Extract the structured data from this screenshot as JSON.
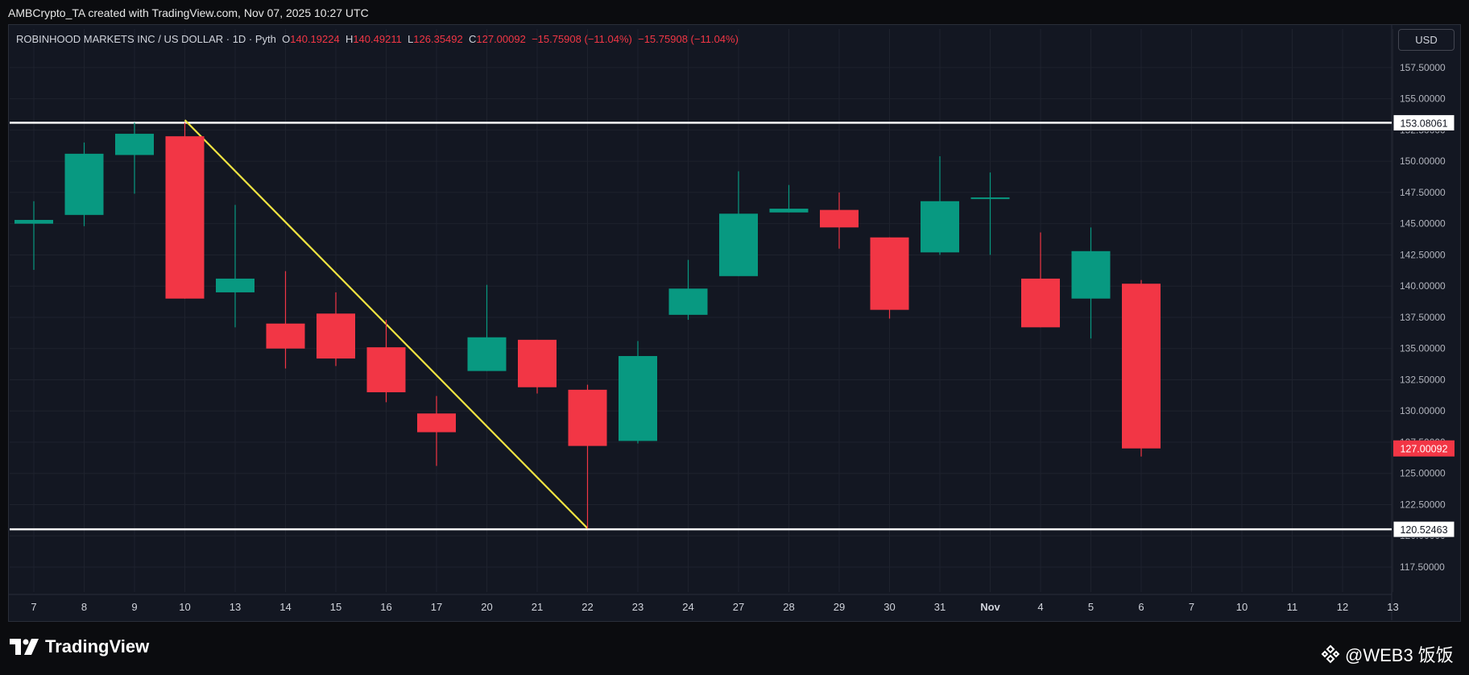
{
  "credit": "AMBCrypto_TA created with TradingView.com, Nov 07, 2025 10:27 UTC",
  "header": {
    "symbol": "ROBINHOOD MARKETS INC / US DOLLAR · 1D · Pyth",
    "o_label": "O",
    "o_value": "140.19224",
    "h_label": "H",
    "h_value": "140.49211",
    "l_label": "L",
    "l_value": "126.35492",
    "c_label": "C",
    "c_value": "127.00092",
    "change1": "−15.75908 (−11.04%)",
    "change2": "−15.75908 (−11.04%)"
  },
  "currency_button": "USD",
  "logo_text": "TradingView",
  "watermark_text": "@WEB3 饭饭",
  "colors": {
    "up": "#089981",
    "down": "#f23645",
    "trendline": "#f0e442",
    "level": "#ffffff",
    "grid": "#1e222d"
  },
  "chart_data": {
    "type": "candlestick",
    "ylim": [
      115.5,
      159.3
    ],
    "y_ticks": [
      "117.50000",
      "120.00000",
      "122.50000",
      "125.00000",
      "127.50000",
      "130.00000",
      "132.50000",
      "135.00000",
      "137.50000",
      "140.00000",
      "142.50000",
      "145.00000",
      "147.50000",
      "150.00000",
      "152.50000",
      "155.00000",
      "157.50000"
    ],
    "x_labels": [
      "7",
      "8",
      "9",
      "10",
      "13",
      "14",
      "15",
      "16",
      "17",
      "20",
      "21",
      "22",
      "23",
      "24",
      "27",
      "28",
      "29",
      "30",
      "31",
      "Nov",
      "4",
      "5",
      "6",
      "7",
      "10",
      "11",
      "12",
      "13"
    ],
    "candles": [
      {
        "date": "7",
        "open": 145.0,
        "high": 146.8,
        "low": 141.3,
        "close": 145.3
      },
      {
        "date": "8",
        "open": 145.7,
        "high": 151.5,
        "low": 144.8,
        "close": 150.6
      },
      {
        "date": "9",
        "open": 150.5,
        "high": 153.1,
        "low": 147.4,
        "close": 152.2
      },
      {
        "date": "10",
        "open": 152.0,
        "high": 153.1,
        "low": 139.0,
        "close": 139.0
      },
      {
        "date": "13",
        "open": 139.5,
        "high": 146.5,
        "low": 136.7,
        "close": 140.6
      },
      {
        "date": "14",
        "open": 137.0,
        "high": 141.2,
        "low": 133.4,
        "close": 135.0
      },
      {
        "date": "15",
        "open": 137.8,
        "high": 139.5,
        "low": 133.6,
        "close": 134.2
      },
      {
        "date": "16",
        "open": 135.1,
        "high": 137.3,
        "low": 130.7,
        "close": 131.5
      },
      {
        "date": "17",
        "open": 129.8,
        "high": 131.2,
        "low": 125.6,
        "close": 128.3
      },
      {
        "date": "20",
        "open": 133.2,
        "high": 140.1,
        "low": 133.2,
        "close": 135.9
      },
      {
        "date": "21",
        "open": 135.7,
        "high": 135.7,
        "low": 131.4,
        "close": 131.9
      },
      {
        "date": "22",
        "open": 131.7,
        "high": 132.1,
        "low": 120.6,
        "close": 127.2
      },
      {
        "date": "23",
        "open": 127.6,
        "high": 135.6,
        "low": 127.4,
        "close": 134.4
      },
      {
        "date": "24",
        "open": 137.7,
        "high": 142.1,
        "low": 137.3,
        "close": 139.8
      },
      {
        "date": "27",
        "open": 140.8,
        "high": 149.2,
        "low": 140.8,
        "close": 145.8
      },
      {
        "date": "28",
        "open": 145.9,
        "high": 148.1,
        "low": 145.9,
        "close": 146.2
      },
      {
        "date": "29",
        "open": 146.1,
        "high": 147.5,
        "low": 143.0,
        "close": 144.7
      },
      {
        "date": "30",
        "open": 143.9,
        "high": 143.9,
        "low": 137.4,
        "close": 138.1
      },
      {
        "date": "31",
        "open": 142.7,
        "high": 150.4,
        "low": 142.5,
        "close": 146.8
      },
      {
        "date": "Nov",
        "open": 147.0,
        "high": 149.1,
        "low": 142.5,
        "close": 147.1
      },
      {
        "date": "4",
        "open": 140.6,
        "high": 144.3,
        "low": 136.7,
        "close": 136.7
      },
      {
        "date": "5",
        "open": 139.0,
        "high": 144.7,
        "low": 135.8,
        "close": 142.8
      },
      {
        "date": "6",
        "open": 140.19224,
        "high": 140.49211,
        "low": 126.35492,
        "close": 127.00092
      }
    ],
    "resistance": {
      "value": 153.08061,
      "label": "153.08061"
    },
    "support": {
      "value": 120.52463,
      "label": "120.52463"
    },
    "last_price": {
      "value": 127.00092,
      "label": "127.00092"
    },
    "trendline": [
      {
        "date": "10",
        "value": 153.3
      },
      {
        "date": "22",
        "value": 120.6
      }
    ]
  }
}
